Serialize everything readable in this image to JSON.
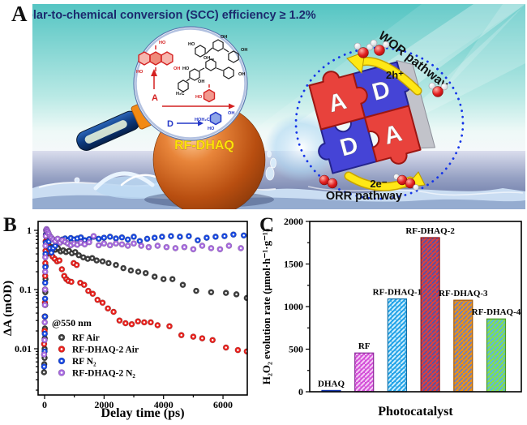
{
  "panelA": {
    "label": "A",
    "title": "Solar-to-chemical conversion (SCC) efficiency ≥ 1.2%",
    "title_color": "#1c2a6e",
    "sphere_label": "RF-DHAQ",
    "sphere_label_color": "#ffe20a",
    "wor_label": "WOR pathway",
    "orr_label": "ORR pathway",
    "holes_label": "2h⁺",
    "electrons_label": "2e⁻",
    "acceptor_label": "A",
    "donor_label": "D",
    "puzzle_letters": [
      "A",
      "D",
      "D",
      "A"
    ],
    "puzzle_colors": {
      "acceptor": "#e8423c",
      "donor": "#4544d6"
    },
    "chem_labels": {
      "ho": "HO",
      "oh": "OH",
      "hoh2c": "HOH₂C",
      "h2c": "H₂C"
    }
  },
  "panelB": {
    "label": "B"
  },
  "panelC": {
    "label": "C"
  },
  "chart_data": [
    {
      "id": "B",
      "type": "scatter",
      "x_label": "Delay time (ps)",
      "y_label": "ΔA (mOD)",
      "annotation": "@550 nm",
      "x_ticks": [
        0,
        2000,
        4000,
        6000
      ],
      "x_minor_ticks": [
        1000,
        3000,
        5000
      ],
      "x_range": [
        -220,
        6820
      ],
      "y_scale": "log",
      "y_ticks": [
        1,
        0.1,
        0.01
      ],
      "y_tick_labels": [
        "1",
        "0.1",
        "0.01"
      ],
      "y_range": [
        0.0018,
        1.4
      ],
      "legend_position": "lower-left",
      "grid": false,
      "series": [
        {
          "name": "RF Air",
          "color": "#3d3d3d",
          "points": [
            [
              -20,
              0.004
            ],
            [
              -10,
              0.0055
            ],
            [
              0,
              0.007
            ],
            [
              0,
              0.01
            ],
            [
              5,
              0.015
            ],
            [
              10,
              0.022
            ],
            [
              15,
              0.035
            ],
            [
              20,
              0.055
            ],
            [
              25,
              0.09
            ],
            [
              30,
              0.15
            ],
            [
              35,
              0.25
            ],
            [
              40,
              0.38
            ],
            [
              50,
              0.55
            ],
            [
              60,
              0.65
            ],
            [
              80,
              0.7
            ],
            [
              110,
              0.62
            ],
            [
              150,
              0.55
            ],
            [
              200,
              0.5
            ],
            [
              280,
              0.52
            ],
            [
              360,
              0.47
            ],
            [
              450,
              0.5
            ],
            [
              540,
              0.44
            ],
            [
              630,
              0.46
            ],
            [
              720,
              0.43
            ],
            [
              820,
              0.45
            ],
            [
              920,
              0.41
            ],
            [
              1030,
              0.43
            ],
            [
              1150,
              0.38
            ],
            [
              1300,
              0.35
            ],
            [
              1450,
              0.33
            ],
            [
              1600,
              0.34
            ],
            [
              1750,
              0.31
            ],
            [
              1950,
              0.3
            ],
            [
              2150,
              0.28
            ],
            [
              2400,
              0.26
            ],
            [
              2650,
              0.23
            ],
            [
              2900,
              0.21
            ],
            [
              3150,
              0.2
            ],
            [
              3400,
              0.19
            ],
            [
              3700,
              0.165
            ],
            [
              4000,
              0.15
            ],
            [
              4300,
              0.15
            ],
            [
              4650,
              0.12
            ],
            [
              5100,
              0.095
            ],
            [
              5600,
              0.09
            ],
            [
              6100,
              0.088
            ],
            [
              6450,
              0.083
            ],
            [
              6800,
              0.072
            ]
          ]
        },
        {
          "name": "RF-DHAQ-2 Air",
          "color": "#e8211d",
          "points": [
            [
              -15,
              0.012
            ],
            [
              0,
              0.02
            ],
            [
              5,
              0.035
            ],
            [
              10,
              0.06
            ],
            [
              15,
              0.1
            ],
            [
              20,
              0.17
            ],
            [
              25,
              0.28
            ],
            [
              30,
              0.45
            ],
            [
              35,
              0.65
            ],
            [
              45,
              0.85
            ],
            [
              55,
              1.0
            ],
            [
              70,
              0.9
            ],
            [
              90,
              0.75
            ],
            [
              120,
              0.6
            ],
            [
              160,
              0.48
            ],
            [
              210,
              0.4
            ],
            [
              270,
              0.36
            ],
            [
              340,
              0.33
            ],
            [
              420,
              0.3
            ],
            [
              500,
              0.31
            ],
            [
              580,
              0.22
            ],
            [
              660,
              0.17
            ],
            [
              730,
              0.15
            ],
            [
              800,
              0.14
            ],
            [
              900,
              0.135
            ],
            [
              980,
              0.28
            ],
            [
              1080,
              0.26
            ],
            [
              1200,
              0.13
            ],
            [
              1330,
              0.12
            ],
            [
              1470,
              0.095
            ],
            [
              1620,
              0.085
            ],
            [
              1780,
              0.067
            ],
            [
              1950,
              0.06
            ],
            [
              2130,
              0.048
            ],
            [
              2320,
              0.042
            ],
            [
              2520,
              0.03
            ],
            [
              2720,
              0.027
            ],
            [
              2930,
              0.026
            ],
            [
              3140,
              0.029
            ],
            [
              3350,
              0.028
            ],
            [
              3570,
              0.028
            ],
            [
              3800,
              0.025
            ],
            [
              4200,
              0.024
            ],
            [
              4600,
              0.017
            ],
            [
              5000,
              0.016
            ],
            [
              5300,
              0.015
            ],
            [
              5650,
              0.014
            ],
            [
              6100,
              0.0105
            ],
            [
              6500,
              0.0095
            ],
            [
              6800,
              0.009
            ]
          ]
        },
        {
          "name": "RF N₂",
          "color": "#1848e0",
          "points": [
            [
              -15,
              0.005
            ],
            [
              0,
              0.009
            ],
            [
              5,
              0.018
            ],
            [
              10,
              0.035
            ],
            [
              15,
              0.07
            ],
            [
              20,
              0.13
            ],
            [
              25,
              0.24
            ],
            [
              30,
              0.4
            ],
            [
              40,
              0.62
            ],
            [
              50,
              0.85
            ],
            [
              65,
              1.0
            ],
            [
              85,
              0.95
            ],
            [
              110,
              0.8
            ],
            [
              140,
              0.65
            ],
            [
              180,
              0.5
            ],
            [
              230,
              0.42
            ],
            [
              290,
              0.5
            ],
            [
              360,
              0.55
            ],
            [
              440,
              0.62
            ],
            [
              520,
              0.66
            ],
            [
              600,
              0.7
            ],
            [
              690,
              0.73
            ],
            [
              780,
              0.68
            ],
            [
              880,
              0.74
            ],
            [
              990,
              0.7
            ],
            [
              1100,
              0.73
            ],
            [
              1220,
              0.76
            ],
            [
              1350,
              0.68
            ],
            [
              1500,
              0.71
            ],
            [
              1650,
              0.78
            ],
            [
              1820,
              0.72
            ],
            [
              2000,
              0.75
            ],
            [
              2200,
              0.78
            ],
            [
              2400,
              0.73
            ],
            [
              2600,
              0.76
            ],
            [
              2800,
              0.7
            ],
            [
              3000,
              0.78
            ],
            [
              3200,
              0.66
            ],
            [
              3450,
              0.72
            ],
            [
              3700,
              0.75
            ],
            [
              3950,
              0.78
            ],
            [
              4250,
              0.8
            ],
            [
              4550,
              0.78
            ],
            [
              4850,
              0.8
            ],
            [
              5150,
              0.68
            ],
            [
              5450,
              0.75
            ],
            [
              5750,
              0.78
            ],
            [
              6050,
              0.8
            ],
            [
              6350,
              0.85
            ],
            [
              6700,
              0.82
            ]
          ]
        },
        {
          "name": "RF-DHAQ-2 N₂",
          "color": "#a86ae0",
          "points": [
            [
              -15,
              0.008
            ],
            [
              0,
              0.014
            ],
            [
              5,
              0.028
            ],
            [
              10,
              0.055
            ],
            [
              15,
              0.1
            ],
            [
              20,
              0.2
            ],
            [
              25,
              0.35
            ],
            [
              30,
              0.55
            ],
            [
              40,
              0.8
            ],
            [
              50,
              1.0
            ],
            [
              65,
              1.05
            ],
            [
              85,
              1.0
            ],
            [
              110,
              0.95
            ],
            [
              140,
              0.88
            ],
            [
              180,
              0.8
            ],
            [
              230,
              0.75
            ],
            [
              290,
              0.7
            ],
            [
              360,
              0.66
            ],
            [
              440,
              0.72
            ],
            [
              520,
              0.62
            ],
            [
              600,
              0.68
            ],
            [
              690,
              0.64
            ],
            [
              780,
              0.6
            ],
            [
              880,
              0.56
            ],
            [
              990,
              0.6
            ],
            [
              1100,
              0.57
            ],
            [
              1220,
              0.62
            ],
            [
              1350,
              0.58
            ],
            [
              1500,
              0.63
            ],
            [
              1650,
              0.8
            ],
            [
              1820,
              0.56
            ],
            [
              2000,
              0.6
            ],
            [
              2200,
              0.56
            ],
            [
              2400,
              0.6
            ],
            [
              2600,
              0.58
            ],
            [
              2800,
              0.55
            ],
            [
              3000,
              0.6
            ],
            [
              3250,
              0.55
            ],
            [
              3500,
              0.52
            ],
            [
              3800,
              0.55
            ],
            [
              4100,
              0.52
            ],
            [
              4400,
              0.5
            ],
            [
              4700,
              0.52
            ],
            [
              5000,
              0.48
            ],
            [
              5300,
              0.55
            ],
            [
              5600,
              0.5
            ],
            [
              5900,
              0.48
            ],
            [
              6200,
              0.55
            ],
            [
              6600,
              0.5
            ]
          ]
        }
      ]
    },
    {
      "id": "C",
      "type": "bar",
      "x_label": "Photocatalyst",
      "y_label": "H₂O₂ evolution rate (μmol·h⁻¹·g⁻¹)",
      "y_ticks": [
        0,
        500,
        1000,
        1500,
        2000
      ],
      "y_minor_step": 250,
      "y_range": [
        0,
        2000
      ],
      "grid": false,
      "categories": [
        "DHAQ",
        "RF",
        "RF-DHAQ-1",
        "RF-DHAQ-2",
        "RF-DHAQ-3",
        "RF-DHAQ-4"
      ],
      "values": [
        15,
        455,
        1090,
        1810,
        1075,
        855
      ],
      "bar_styles": [
        {
          "fill": "#2255dd",
          "hatch": null,
          "edge": "#1133aa"
        },
        {
          "fill": "#d44fd8",
          "hatch": "#f4ccf6",
          "edge": "#8a2a9a"
        },
        {
          "fill": "#22a2e8",
          "hatch": "#cdeefb",
          "edge": "#1070a8"
        },
        {
          "fill": "#e04238",
          "hatch": "#5850a8",
          "edge": "#8a1820"
        },
        {
          "fill": "#f29212",
          "hatch": "#7080b8",
          "edge": "#a85c08"
        },
        {
          "fill": "#8ade4a",
          "hatch": "#58b8e0",
          "edge": "#4a9a28"
        }
      ]
    }
  ]
}
